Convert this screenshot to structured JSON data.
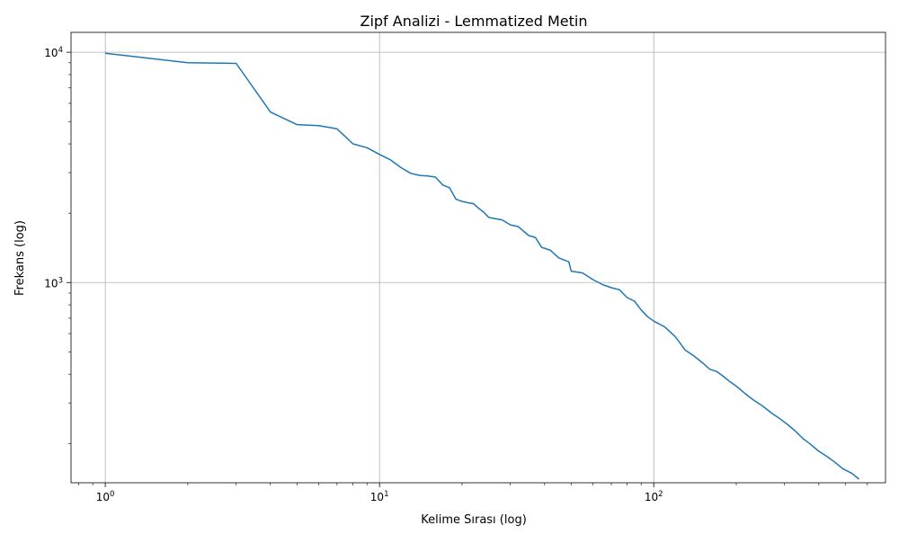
{
  "chart_data": {
    "type": "line",
    "title": "Zipf Analizi - Lemmatized Metin",
    "xlabel": "Kelime Sırası (log)",
    "ylabel": "Frekans (log)",
    "xscale": "log",
    "yscale": "log",
    "xlim": [
      0.75,
      700
    ],
    "ylim": [
      135,
      12200
    ],
    "grid": true,
    "line_color": "#1f77b4",
    "x_ticks": [
      {
        "value": 1,
        "base": "10",
        "exp": "0"
      },
      {
        "value": 10,
        "base": "10",
        "exp": "1"
      },
      {
        "value": 100,
        "base": "10",
        "exp": "2"
      }
    ],
    "y_ticks": [
      {
        "value": 1000,
        "base": "10",
        "exp": "3"
      },
      {
        "value": 10000,
        "base": "10",
        "exp": "4"
      }
    ],
    "series": [
      {
        "x": [
          1,
          2,
          3,
          4,
          5,
          6,
          7,
          8,
          9,
          10,
          11,
          12,
          13,
          14,
          15,
          16,
          17,
          18,
          19,
          20,
          21,
          22,
          23,
          24,
          25,
          26,
          28,
          30,
          32,
          35,
          37,
          39,
          42,
          45,
          49,
          50,
          55,
          60,
          65,
          70,
          75,
          80,
          85,
          90,
          95,
          100,
          110,
          120,
          130,
          140,
          150,
          160,
          170,
          180,
          190,
          200,
          215,
          230,
          250,
          270,
          290,
          310,
          330,
          350,
          370,
          400,
          430,
          460,
          490,
          530,
          560
        ],
        "y": [
          9900,
          9000,
          8950,
          5500,
          4850,
          4800,
          4650,
          4000,
          3850,
          3600,
          3400,
          3150,
          2980,
          2920,
          2900,
          2870,
          2650,
          2580,
          2300,
          2250,
          2220,
          2200,
          2100,
          2020,
          1920,
          1900,
          1870,
          1780,
          1750,
          1600,
          1570,
          1420,
          1380,
          1280,
          1230,
          1120,
          1100,
          1030,
          980,
          950,
          930,
          860,
          830,
          760,
          710,
          680,
          640,
          580,
          510,
          480,
          450,
          420,
          410,
          390,
          370,
          355,
          330,
          310,
          290,
          270,
          255,
          240,
          225,
          210,
          200,
          185,
          175,
          165,
          155,
          148,
          140
        ]
      }
    ]
  }
}
